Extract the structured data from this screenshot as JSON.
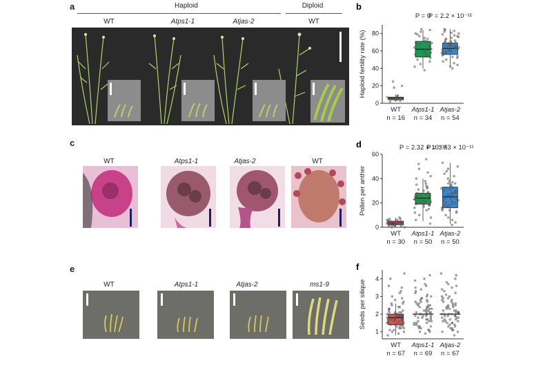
{
  "panel_a": {
    "letter": "a",
    "group_haploid": "Haploid",
    "group_diploid": "Diploid",
    "labels": [
      "WT",
      "Atps1-1",
      "Atjas-2",
      "WT"
    ]
  },
  "panel_c": {
    "letter": "c",
    "labels": [
      "WT",
      "Atps1-1",
      "Atjas-2",
      "WT"
    ]
  },
  "panel_e": {
    "letter": "e",
    "labels": [
      "WT",
      "Atps1-1",
      "Atjas-2",
      "ms1-9"
    ]
  },
  "chart_data": [
    {
      "id": "b",
      "type": "box",
      "ylabel": "Haploid fertility rate (%)",
      "ylim": [
        0,
        90
      ],
      "yticks": [
        0,
        20,
        40,
        60,
        80
      ],
      "categories": [
        "WT",
        "Atps1-1",
        "Atjas-2"
      ],
      "n_labels": [
        "n = 16",
        "n = 34",
        "n = 54"
      ],
      "pvalues": [
        "P = 0",
        "P = 2.2 × 10⁻¹²"
      ],
      "colors": [
        "#d9534f",
        "#1a9a50",
        "#3a86c8"
      ],
      "boxes": [
        {
          "q1": 4,
          "median": 6,
          "q3": 7,
          "wmin": 2,
          "wmax": 10,
          "points": [
            2,
            3,
            4,
            4,
            5,
            5,
            6,
            6,
            6,
            7,
            7,
            8,
            9,
            18,
            20,
            25
          ]
        },
        {
          "q1": 53,
          "median": 62,
          "q3": 71,
          "wmin": 40,
          "wmax": 84,
          "points": [
            38,
            42,
            45,
            48,
            50,
            52,
            54,
            55,
            56,
            57,
            58,
            59,
            60,
            61,
            62,
            62,
            63,
            64,
            65,
            66,
            67,
            68,
            69,
            70,
            71,
            72,
            74,
            75,
            77,
            79,
            80,
            82,
            84,
            85
          ]
        },
        {
          "q1": 56,
          "median": 63,
          "q3": 69,
          "wmin": 42,
          "wmax": 85,
          "points": [
            40,
            42,
            44,
            46,
            48,
            50,
            52,
            53,
            54,
            55,
            56,
            57,
            58,
            59,
            60,
            60,
            61,
            62,
            62,
            63,
            63,
            64,
            64,
            65,
            65,
            66,
            66,
            67,
            67,
            68,
            68,
            69,
            69,
            70,
            70,
            71,
            72,
            73,
            74,
            75,
            76,
            77,
            78,
            79,
            80,
            81,
            82,
            83,
            84,
            85,
            58,
            61,
            66,
            71
          ]
        }
      ]
    },
    {
      "id": "d",
      "type": "box",
      "ylabel": "Pollen per anther",
      "ylim": [
        0,
        60
      ],
      "yticks": [
        0,
        20,
        40,
        60
      ],
      "categories": [
        "WT",
        "Atps1-1",
        "Atjas-2"
      ],
      "n_labels": [
        "n = 30",
        "n = 50",
        "n = 50"
      ],
      "pvalues": [
        "P = 2.32 × 10⁻¹¹",
        "P = 3.83 × 10⁻¹¹"
      ],
      "colors": [
        "#d9534f",
        "#1a9a50",
        "#3a86c8"
      ],
      "boxes": [
        {
          "q1": 2,
          "median": 3.5,
          "q3": 5,
          "wmin": 0,
          "wmax": 8,
          "points": [
            0,
            0,
            1,
            1,
            1,
            2,
            2,
            2,
            2,
            3,
            3,
            3,
            3,
            4,
            4,
            4,
            4,
            5,
            5,
            5,
            5,
            6,
            6,
            6,
            7,
            7,
            8,
            2,
            3,
            4
          ]
        },
        {
          "q1": 19,
          "median": 24,
          "q3": 28,
          "wmin": 5,
          "wmax": 40,
          "points": [
            3,
            6,
            8,
            10,
            12,
            14,
            15,
            16,
            17,
            18,
            19,
            19,
            20,
            20,
            21,
            21,
            22,
            22,
            23,
            23,
            24,
            24,
            25,
            25,
            26,
            26,
            27,
            27,
            28,
            28,
            29,
            30,
            31,
            32,
            33,
            34,
            35,
            36,
            38,
            40,
            42,
            45,
            48,
            52,
            56,
            22,
            24,
            26,
            20,
            18
          ]
        },
        {
          "q1": 16,
          "median": 25,
          "q3": 33,
          "wmin": 3,
          "wmax": 53,
          "points": [
            2,
            4,
            6,
            8,
            10,
            12,
            13,
            14,
            15,
            16,
            17,
            18,
            19,
            20,
            21,
            22,
            23,
            24,
            25,
            25,
            26,
            27,
            28,
            29,
            30,
            31,
            32,
            33,
            34,
            35,
            36,
            37,
            38,
            40,
            42,
            44,
            46,
            48,
            50,
            53,
            20,
            24,
            28,
            30,
            18,
            22,
            26,
            32,
            36,
            14
          ]
        }
      ]
    },
    {
      "id": "f",
      "type": "box",
      "ylabel": "Seeds per silique",
      "ylim": [
        0.6,
        4.5
      ],
      "yticks": [
        1,
        2,
        3,
        4
      ],
      "categories": [
        "WT",
        "Atps1-1",
        "Atjas-2"
      ],
      "n_labels": [
        "n = 67",
        "n = 69",
        "n = 67"
      ],
      "pvalues": [],
      "colors": [
        "#d9534f",
        "#1a9a50",
        "#3a86c8"
      ],
      "boxes": [
        {
          "q1": 1.4,
          "median": 1.8,
          "q3": 2.0,
          "wmin": 0.8,
          "wmax": 2.6,
          "points": [
            0.8,
            0.9,
            1.0,
            1.1,
            1.2,
            1.3,
            1.4,
            1.4,
            1.5,
            1.5,
            1.6,
            1.6,
            1.7,
            1.7,
            1.8,
            1.8,
            1.9,
            1.9,
            2.0,
            2.0,
            2.1,
            2.1,
            2.2,
            2.3,
            2.4,
            2.5,
            2.6,
            2.8,
            3.0,
            3.2,
            3.5,
            4.0,
            4.3,
            1.5,
            1.7,
            1.9,
            2.0,
            1.8,
            1.6,
            1.4,
            1.3,
            1.2,
            2.2,
            2.1,
            1.9,
            2.4,
            2.6,
            1.0,
            1.1,
            1.3,
            1.5,
            1.7,
            1.9,
            2.1,
            2.3,
            2.7,
            2.9,
            3.3,
            3.6,
            1.6,
            1.8,
            2.0,
            1.4,
            1.2,
            2.0,
            1.9,
            1.7
          ]
        },
        {
          "q1": 2.0,
          "median": 2.0,
          "q3": 2.0,
          "wmin": 2.0,
          "wmax": 2.0,
          "points": [
            0.9,
            1.0,
            1.1,
            1.2,
            1.3,
            1.4,
            1.5,
            1.6,
            1.7,
            1.8,
            1.9,
            2.0,
            2.0,
            2.1,
            2.2,
            2.3,
            2.4,
            2.5,
            2.6,
            2.7,
            2.8,
            2.9,
            3.0,
            3.1,
            3.2,
            3.3,
            3.5,
            3.7,
            3.9,
            4.2,
            1.5,
            1.7,
            1.9,
            2.1,
            2.3,
            2.5,
            2.7,
            1.4,
            1.6,
            1.8,
            2.0,
            2.2,
            2.4,
            1.2,
            1.3,
            2.6,
            2.8,
            3.0,
            1.1,
            1.9,
            2.1,
            2.3,
            1.7,
            1.5,
            2.5,
            2.0,
            1.8,
            2.2,
            1.6,
            2.4,
            3.4,
            2.9,
            1.0,
            1.3,
            2.7,
            3.6,
            4.0,
            1.9,
            2.1
          ]
        },
        {
          "q1": 2.0,
          "median": 2.0,
          "q3": 2.0,
          "wmin": 2.0,
          "wmax": 2.0,
          "points": [
            0.8,
            1.0,
            1.1,
            1.2,
            1.3,
            1.4,
            1.5,
            1.6,
            1.7,
            1.8,
            1.9,
            2.0,
            2.0,
            2.1,
            2.2,
            2.3,
            2.4,
            2.5,
            2.6,
            2.7,
            2.8,
            2.9,
            3.0,
            3.1,
            3.2,
            3.3,
            3.4,
            3.6,
            3.8,
            4.0,
            4.2,
            4.3,
            1.5,
            1.7,
            1.9,
            2.1,
            2.3,
            2.5,
            1.4,
            1.6,
            1.8,
            2.0,
            2.2,
            2.4,
            1.2,
            2.6,
            2.8,
            3.0,
            1.1,
            1.9,
            2.1,
            1.7,
            1.5,
            2.5,
            2.0,
            1.8,
            2.2,
            1.6,
            2.4,
            3.5,
            2.9,
            1.0,
            1.3,
            2.7,
            3.7,
            1.9,
            2.1
          ]
        }
      ]
    }
  ]
}
